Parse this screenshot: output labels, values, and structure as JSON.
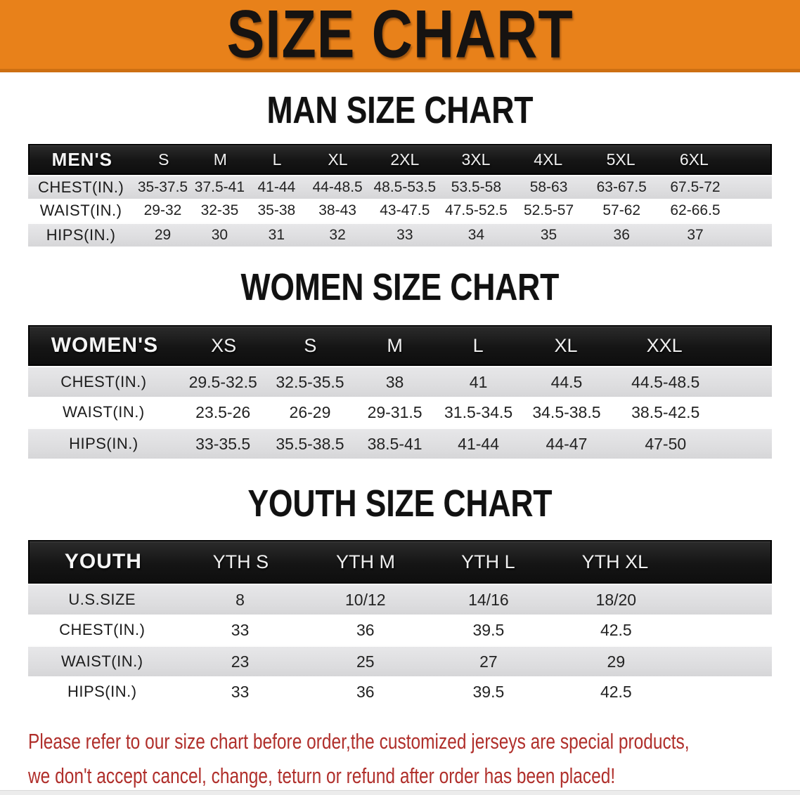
{
  "banner": {
    "title": "SIZE CHART",
    "bg_color": "#e8811a"
  },
  "sections": [
    {
      "key": "men",
      "heading": "MAN SIZE CHART",
      "table_label": "MEN'S",
      "columns": [
        "S",
        "M",
        "L",
        "XL",
        "2XL",
        "3XL",
        "4XL",
        "5XL",
        "6XL"
      ],
      "rows": [
        {
          "label": "CHEST(IN.)",
          "values": [
            "35-37.5",
            "37.5-41",
            "41-44",
            "44-48.5",
            "48.5-53.5",
            "53.5-58",
            "58-63",
            "63-67.5",
            "67.5-72"
          ]
        },
        {
          "label": "WAIST(IN.)",
          "values": [
            "29-32",
            "32-35",
            "35-38",
            "38-43",
            "43-47.5",
            "47.5-52.5",
            "52.5-57",
            "57-62",
            "62-66.5"
          ]
        },
        {
          "label": "HIPS(IN.)",
          "values": [
            "29",
            "30",
            "31",
            "32",
            "33",
            "34",
            "35",
            "36",
            "37"
          ]
        }
      ]
    },
    {
      "key": "women",
      "heading": "WOMEN SIZE CHART",
      "table_label": "WOMEN'S",
      "columns": [
        "XS",
        "S",
        "M",
        "L",
        "XL",
        "XXL"
      ],
      "rows": [
        {
          "label": "CHEST(IN.)",
          "values": [
            "29.5-32.5",
            "32.5-35.5",
            "38",
            "41",
            "44.5",
            "44.5-48.5"
          ]
        },
        {
          "label": "WAIST(IN.)",
          "values": [
            "23.5-26",
            "26-29",
            "29-31.5",
            "31.5-34.5",
            "34.5-38.5",
            "38.5-42.5"
          ]
        },
        {
          "label": "HIPS(IN.)",
          "values": [
            "33-35.5",
            "35.5-38.5",
            "38.5-41",
            "41-44",
            "44-47",
            "47-50"
          ]
        }
      ]
    },
    {
      "key": "youth",
      "heading": "YOUTH SIZE CHART",
      "table_label": "YOUTH",
      "columns": [
        "YTH S",
        "YTH M",
        "YTH L",
        "YTH XL"
      ],
      "rows": [
        {
          "label": "U.S.SIZE",
          "values": [
            "8",
            "10/12",
            "14/16",
            "18/20"
          ]
        },
        {
          "label": "CHEST(IN.)",
          "values": [
            "33",
            "36",
            "39.5",
            "42.5"
          ]
        },
        {
          "label": "WAIST(IN.)",
          "values": [
            "23",
            "25",
            "27",
            "29"
          ]
        },
        {
          "label": "HIPS(IN.)",
          "values": [
            "33",
            "36",
            "39.5",
            "42.5"
          ]
        }
      ]
    }
  ],
  "note": {
    "color": "#b02f2b",
    "lines": [
      "Please refer to our size chart before order,the customized jerseys are special products,",
      "we don't accept cancel, change, teturn or refund after order has been placed!"
    ]
  }
}
